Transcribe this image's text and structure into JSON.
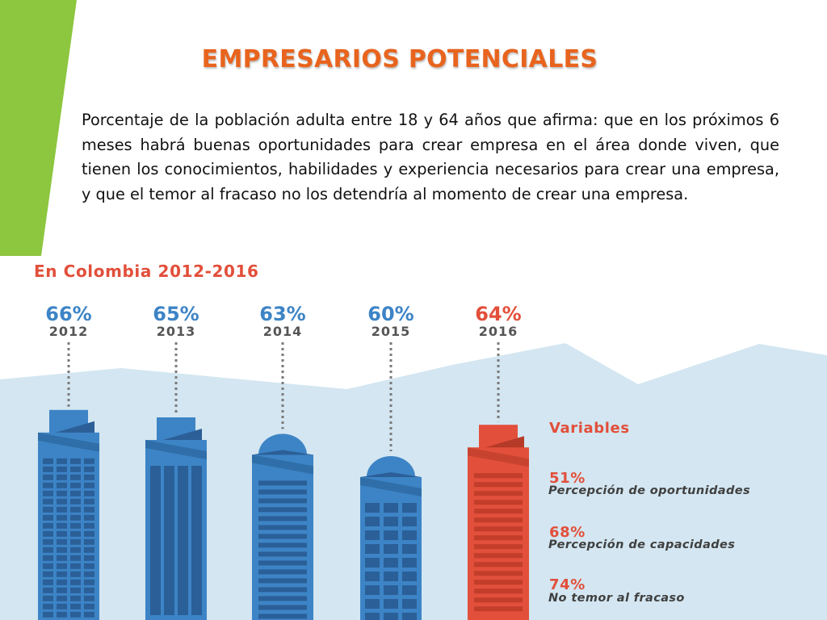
{
  "title": "EMPRESARIOS POTENCIALES",
  "description": "Porcentaje de la población adulta entre 18 y 64 años que afirma: que en los próximos 6 meses habrá buenas oportunidades para crear empresa en el área donde viven, que tienen los conocimientos, habilidades y experiencia necesarios para crear una empresa, y que el temor al fracaso no los detendría al momento de crear una empresa.",
  "colors": {
    "accent_green": "#8dc63f",
    "title_orange": "#e8641e",
    "highlight_red": "#e24f3a",
    "building_blue": "#3d84c6",
    "sky_blue": "#d3e6f1"
  },
  "chart_data": {
    "type": "bar",
    "title": "En Colombia 2012-2016",
    "categories": [
      "2012",
      "2013",
      "2014",
      "2015",
      "2016"
    ],
    "values": [
      66,
      65,
      63,
      60,
      64
    ],
    "value_labels": [
      "66%",
      "65%",
      "63%",
      "60%",
      "64%"
    ],
    "highlight": "2016",
    "variables": {
      "heading": "Variables",
      "items": [
        {
          "value": 51,
          "value_label": "51%",
          "label": "Percepción de oportunidades"
        },
        {
          "value": 68,
          "value_label": "68%",
          "label": "Percepción de capacidades"
        },
        {
          "value": 74,
          "value_label": "74%",
          "label": "No temor al fracaso"
        }
      ]
    }
  }
}
